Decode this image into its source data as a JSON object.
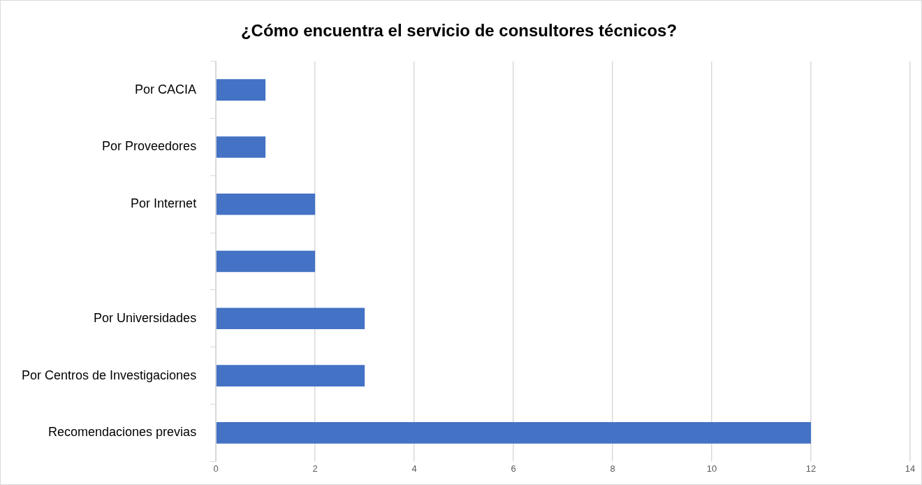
{
  "chart_data": {
    "type": "bar",
    "orientation": "horizontal",
    "title": "¿Cómo encuentra el servicio de consultores técnicos?",
    "categories": [
      "Por CACIA",
      "Por Proveedores",
      "Por Internet",
      null,
      "Por Universidades",
      "Por Centros de Investigaciones",
      "Recomendaciones previas"
    ],
    "values": [
      1,
      1,
      2,
      2,
      3,
      3,
      12
    ],
    "color": "#4472c4",
    "xlim": [
      0,
      14
    ],
    "xticks": [
      0,
      2,
      4,
      6,
      8,
      10,
      12,
      14
    ],
    "grid": "x"
  }
}
